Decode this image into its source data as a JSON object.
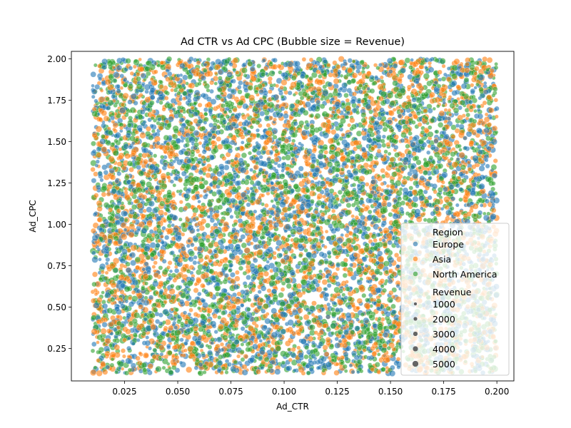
{
  "chart_data": {
    "type": "scatter",
    "title": "Ad CTR vs Ad CPC (Bubble size = Revenue)",
    "xlabel": "Ad_CTR",
    "ylabel": "Ad_CPC",
    "xlim": [
      0.0,
      0.208
    ],
    "ylim": [
      0.0545,
      2.0455
    ],
    "x_data_range": [
      0.01,
      0.2
    ],
    "y_data_range": [
      0.1,
      2.0
    ],
    "xticks": [
      0.025,
      0.05,
      0.075,
      0.1,
      0.125,
      0.15,
      0.175,
      0.2
    ],
    "xtick_labels": [
      "0.025",
      "0.050",
      "0.075",
      "0.100",
      "0.125",
      "0.150",
      "0.175",
      "0.200"
    ],
    "yticks": [
      0.25,
      0.5,
      0.75,
      1.0,
      1.25,
      1.5,
      1.75,
      2.0
    ],
    "ytick_labels": [
      "0.25",
      "0.50",
      "0.75",
      "1.00",
      "1.25",
      "1.50",
      "1.75",
      "2.00"
    ],
    "grid": false,
    "legend_position": "lower-right",
    "legend": {
      "hue_title": "Region",
      "size_title": "Revenue",
      "size_values": [
        1000,
        2000,
        3000,
        4000,
        5000
      ],
      "size_labels": [
        "1000",
        "2000",
        "3000",
        "4000",
        "5000"
      ]
    },
    "series": [
      {
        "name": "Europe",
        "color": "#1f77b4"
      },
      {
        "name": "Asia",
        "color": "#ff7f0e"
      },
      {
        "name": "North America",
        "color": "#2ca02c"
      }
    ],
    "point_alpha": 0.6,
    "point_edge_color": "#ffffff",
    "points": "dense uniform cloud covering the full data range for all three regions"
  }
}
